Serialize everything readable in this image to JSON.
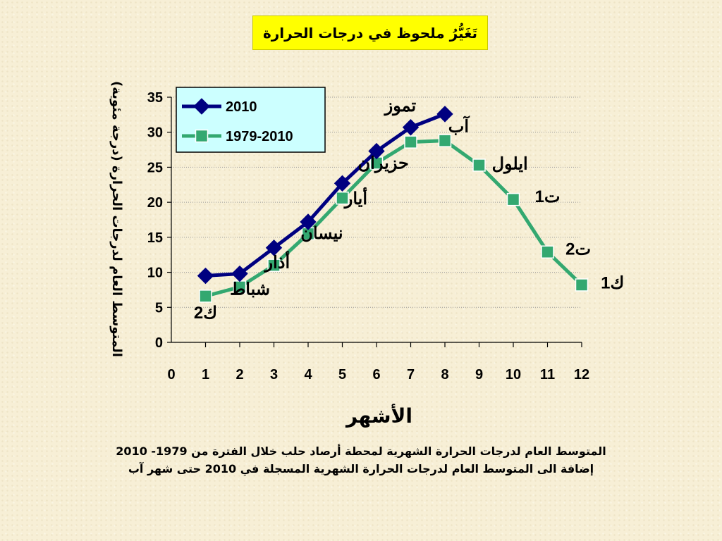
{
  "title": "تَغَيُّرُ ملحوظ في درجات الحرارة",
  "caption": {
    "line1": "المتوسط العام لدرجات الحرارة الشهرية لمحطة أرصاد حلب خلال الفترة من 1979- 2010",
    "line2": "إضافة الى المتوسط العام لدرجات الحرارة الشهرية المسجلة في  2010 حتى شهر آب"
  },
  "chart_data": {
    "type": "line",
    "xlabel": "الأشهر",
    "ylabel": "المتوسط العام لدرجات الحرارة (درجة مئوية)",
    "xlim": [
      0,
      12
    ],
    "ylim": [
      0,
      35
    ],
    "x_ticks": [
      0,
      1,
      2,
      3,
      4,
      5,
      6,
      7,
      8,
      9,
      10,
      11,
      12
    ],
    "y_ticks": [
      0,
      5,
      10,
      15,
      20,
      25,
      30,
      35
    ],
    "grid": true,
    "legend_position": "top-left",
    "series": [
      {
        "name": "2010",
        "color": "#000080",
        "marker": "diamond",
        "x": [
          1,
          2,
          3,
          4,
          5,
          6,
          7,
          8
        ],
        "values": [
          9.5,
          9.8,
          13.5,
          17.2,
          22.7,
          27.3,
          30.7,
          32.6
        ]
      },
      {
        "name": "1979-2010",
        "color": "#33a870",
        "marker": "square",
        "x": [
          1,
          2,
          3,
          4,
          5,
          6,
          7,
          8,
          9,
          10,
          11,
          12
        ],
        "values": [
          6.6,
          7.9,
          11.0,
          15.5,
          20.6,
          25.6,
          28.6,
          28.8,
          25.3,
          20.4,
          12.9,
          8.2
        ]
      }
    ],
    "annotations": [
      {
        "text": "ك2",
        "x": 1,
        "y": 3.4
      },
      {
        "text": "شباط",
        "x": 2.3,
        "y": 6.8
      },
      {
        "text": "أذار",
        "x": 3.1,
        "y": 10.6
      },
      {
        "text": "نيسان",
        "x": 4.4,
        "y": 14.8
      },
      {
        "text": "أيار",
        "x": 5.4,
        "y": 19.7
      },
      {
        "text": "حزيران",
        "x": 6.2,
        "y": 24.8
      },
      {
        "text": "تموز",
        "x": 6.7,
        "y": 33.0
      },
      {
        "text": "آب",
        "x": 8.4,
        "y": 30.0
      },
      {
        "text": "ايلول",
        "x": 9.9,
        "y": 24.7
      },
      {
        "text": "ت1",
        "x": 11.0,
        "y": 20.0
      },
      {
        "text": "ت2",
        "x": 11.9,
        "y": 12.5
      },
      {
        "text": "ك1",
        "x": 12.9,
        "y": 7.7
      }
    ]
  }
}
